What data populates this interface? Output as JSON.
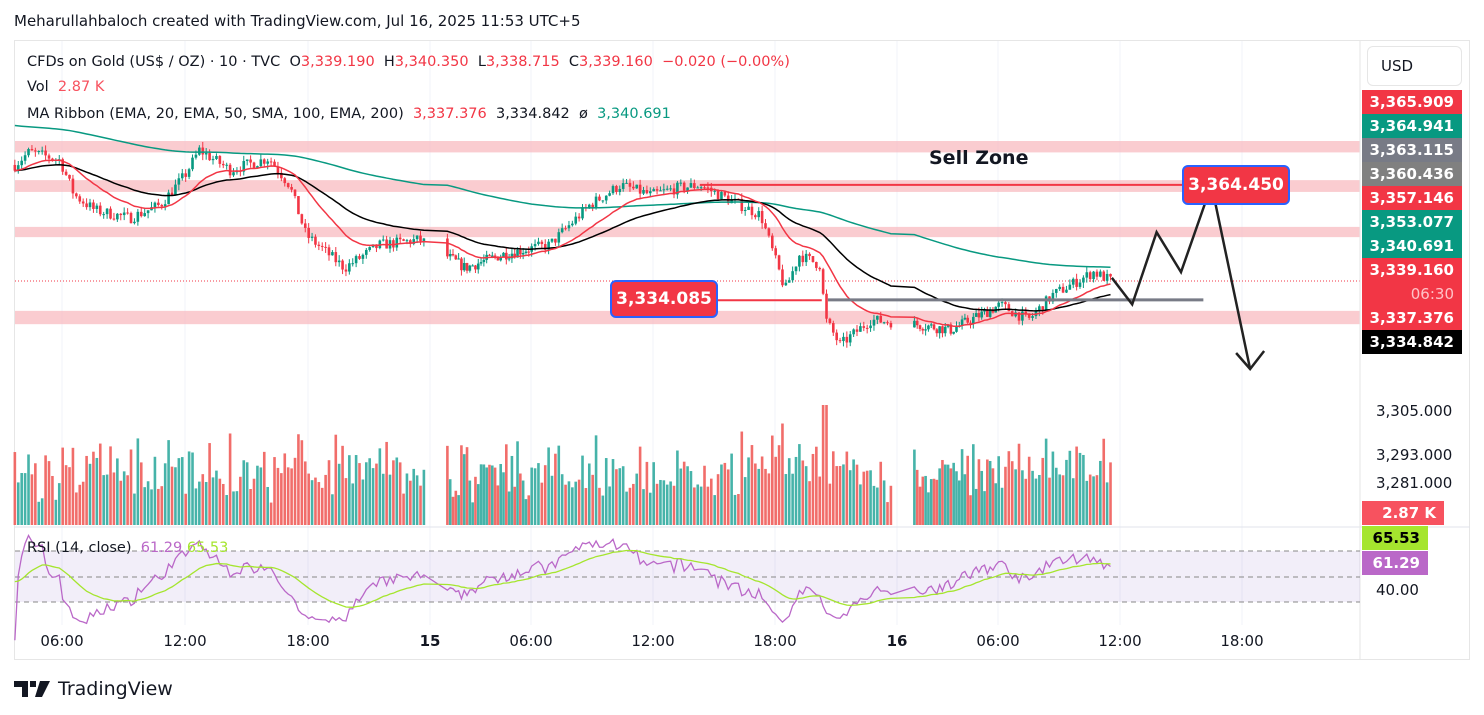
{
  "credit": "Meharullahbaloch created with TradingView.com, Jul 16, 2025 11:53 UTC+5",
  "legend": {
    "symbol": "CFDs on Gold (US$ / OZ) · 10 · TVC",
    "o_label": "O",
    "o": "3,339.190",
    "h_label": "H",
    "h": "3,340.350",
    "l_label": "L",
    "l": "3,338.715",
    "c_label": "C",
    "c": "3,339.160",
    "change": "−0.020 (−0.00%)",
    "vol_label": "Vol",
    "vol": "2.87 K",
    "ma_label": "MA Ribbon (EMA, 20, EMA, 50, SMA, 100, EMA, 200)",
    "ma1": "3,337.376",
    "ma2": "3,334.842",
    "ma_sep": "ø",
    "ma3": "3,340.691",
    "rsi_label": "RSI (14, close)",
    "rsi": "61.29",
    "rsi_ma": "65.53"
  },
  "currency": "USD",
  "price_labels": [
    {
      "text": "3,365.909",
      "color": "#f23645"
    },
    {
      "text": "3,364.941",
      "color": "#089981"
    },
    {
      "text": "3,363.115",
      "color": "#787b86"
    },
    {
      "text": "3,360.436",
      "color": "#808080"
    },
    {
      "text": "3,357.146",
      "color": "#f23645"
    },
    {
      "text": "3,353.077",
      "color": "#089981"
    },
    {
      "text": "3,340.691",
      "color": "#089981"
    },
    {
      "text": "3,339.160",
      "color": "#f23645"
    },
    {
      "text": "06:30",
      "color": "#f23645"
    },
    {
      "text": "3,337.376",
      "color": "#f23645"
    },
    {
      "text": "3,334.842",
      "color": "#000000"
    }
  ],
  "axis_labels": [
    "3,305.000",
    "3,293.000",
    "3,281.000"
  ],
  "vol_badge": "2.87 K",
  "rsi_badges": [
    "65.53",
    "61.29"
  ],
  "rsi_axis": "40.00",
  "annotations": {
    "sell_zone": "Sell Zone",
    "target": "3,364.450",
    "level": "3,334.085"
  },
  "brand": "TradingView",
  "chart_data": {
    "type": "candlestick",
    "title": "CFDs on Gold (US$ / OZ) · 10 · TVC",
    "x_unit": "hours since Jul 14 00:00",
    "x_ticks": [
      {
        "h": 6,
        "label": "06:00"
      },
      {
        "h": 12,
        "label": "12:00"
      },
      {
        "h": 18,
        "label": "18:00"
      },
      {
        "h": 24,
        "label": "15"
      },
      {
        "h": 30,
        "label": "06:00"
      },
      {
        "h": 36,
        "label": "12:00"
      },
      {
        "h": 42,
        "label": "18:00"
      },
      {
        "h": 48,
        "label": "16"
      },
      {
        "h": 54,
        "label": "06:00"
      },
      {
        "h": 60,
        "label": "12:00"
      },
      {
        "h": 66,
        "label": "18:00"
      }
    ],
    "price_path": [
      [
        3.7,
        3369.7
      ],
      [
        4.4,
        3373.1
      ],
      [
        5.9,
        3371
      ],
      [
        6.6,
        3361.8
      ],
      [
        7.6,
        3357.8
      ],
      [
        9.3,
        3355.7
      ],
      [
        10.8,
        3359.2
      ],
      [
        12,
        3367
      ],
      [
        12.7,
        3373.6
      ],
      [
        14.2,
        3368.4
      ],
      [
        16.1,
        3371.5
      ],
      [
        17.1,
        3364.4
      ],
      [
        17.9,
        3351.3
      ],
      [
        19.8,
        3342.6
      ],
      [
        21.5,
        3348.6
      ],
      [
        23.5,
        3350
      ],
      [
        26.1,
        3342.6
      ],
      [
        28.2,
        3346
      ],
      [
        30.9,
        3348.6
      ],
      [
        32.9,
        3359.2
      ],
      [
        34.4,
        3364.4
      ],
      [
        35.9,
        3361.8
      ],
      [
        37.2,
        3363.6
      ],
      [
        38.3,
        3364.4
      ],
      [
        41.3,
        3356.5
      ],
      [
        42.5,
        3336.8
      ],
      [
        43.2,
        3346
      ],
      [
        44.2,
        3343.4
      ],
      [
        44.5,
        3328.9
      ],
      [
        45.2,
        3322.3
      ],
      [
        46.7,
        3328.9
      ],
      [
        49.4,
        3327.6
      ],
      [
        51.2,
        3326.3
      ],
      [
        54.1,
        3332.8
      ],
      [
        55.5,
        3328.9
      ],
      [
        56.7,
        3335.5
      ],
      [
        58.7,
        3341.5
      ],
      [
        59.6,
        3339.16
      ]
    ],
    "projection": [
      [
        59.6,
        3340
      ],
      [
        60.6,
        3333
      ],
      [
        61.8,
        3352
      ],
      [
        63.0,
        3341.5
      ],
      [
        64.5,
        3364.45
      ],
      [
        66.4,
        3316
      ]
    ],
    "zones": [
      [
        3373,
        3376
      ],
      [
        3362.6,
        3365.7
      ],
      [
        3350.7,
        3353.4
      ],
      [
        3327.8,
        3331.3
      ]
    ],
    "levels": [
      {
        "price": 3364.45,
        "from": 38.3,
        "to": 63.8,
        "color": "#f23645"
      },
      {
        "price": 3334.085,
        "from": 38.2,
        "to": 44.3,
        "color": "#f23645"
      },
      {
        "price": 3334.2,
        "from": 44.6,
        "to": 64.1,
        "color": "#787b86"
      }
    ],
    "last_price": 3339.16,
    "rsi_levels": [
      70,
      50,
      30
    ]
  }
}
